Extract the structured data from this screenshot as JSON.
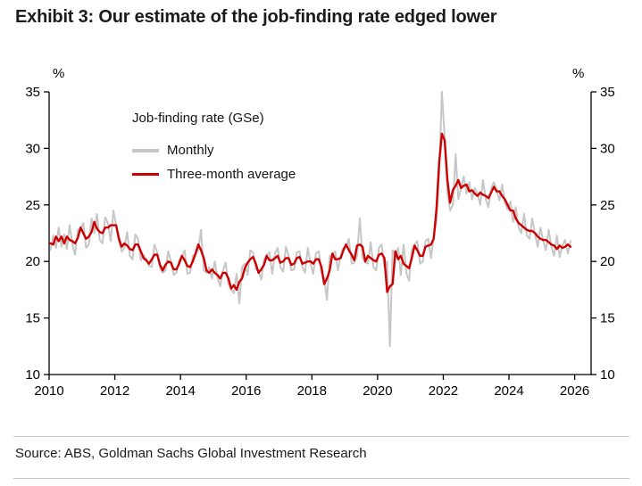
{
  "footer": {
    "source": "Source: ABS, Goldman Sachs Global Investment Research"
  },
  "chart_data": {
    "type": "line",
    "title": "Exhibit 3: Our estimate of the job-finding rate edged lower",
    "unit": "%",
    "x_start_year": 2010,
    "x_frequency": "monthly",
    "xlim": [
      2010,
      2026.5
    ],
    "ylim": [
      10,
      35
    ],
    "xticks": [
      2010,
      2012,
      2014,
      2016,
      2018,
      2020,
      2022,
      2024,
      2026
    ],
    "yticks": [
      10,
      15,
      20,
      25,
      30,
      35
    ],
    "legend": {
      "heading": "Job-finding rate (GSe)",
      "entries": [
        {
          "name": "Monthly",
          "color": "#c6c6c6"
        },
        {
          "name": "Three-month average",
          "color": "#cc0000"
        }
      ]
    },
    "series": [
      {
        "name": "Monthly",
        "color": "#c6c6c6",
        "width": 2,
        "values": [
          21.0,
          22.3,
          21.2,
          23.0,
          21.3,
          22.4,
          21.1,
          23.2,
          21.5,
          20.6,
          22.8,
          22.9,
          23.4,
          21.2,
          21.5,
          23.8,
          22.5,
          24.2,
          21.9,
          21.6,
          23.9,
          23.4,
          21.8,
          24.5,
          23.2,
          21.8,
          20.9,
          21.2,
          22.6,
          20.5,
          20.2,
          22.4,
          22.0,
          20.1,
          20.6,
          20.2,
          19.6,
          19.5,
          21.5,
          20.8,
          19.4,
          19.0,
          19.2,
          20.9,
          20.0,
          18.8,
          19.0,
          20.1,
          20.4,
          21.0,
          18.9,
          19.0,
          20.5,
          20.6,
          21.0,
          22.8,
          19.2,
          19.0,
          19.5,
          18.5,
          20.0,
          18.6,
          17.8,
          19.2,
          19.9,
          18.0,
          17.5,
          17.2,
          18.9,
          16.3,
          19.5,
          19.8,
          18.8,
          21.0,
          20.8,
          19.3,
          19.2,
          18.4,
          20.2,
          20.6,
          20.8,
          18.9,
          20.7,
          21.2,
          19.5,
          19.1,
          21.3,
          20.5,
          19.2,
          19.3,
          20.8,
          20.9,
          19.5,
          19.0,
          21.2,
          19.8,
          18.9,
          20.7,
          20.9,
          19.0,
          18.5,
          16.6,
          20.5,
          20.6,
          20.9,
          19.2,
          20.5,
          21.2,
          21.3,
          22.0,
          19.8,
          19.9,
          20.5,
          23.8,
          20.3,
          19.9,
          19.8,
          21.7,
          19.5,
          19.2,
          21.2,
          21.5,
          19.5,
          20.0,
          12.5,
          21.0,
          20.5,
          21.2,
          18.8,
          21.5,
          19.0,
          18.3,
          21.0,
          21.5,
          21.8,
          19.8,
          20.0,
          21.8,
          22.0,
          20.3,
          22.2,
          23.5,
          28.0,
          35.0,
          31.0,
          26.0,
          24.5,
          25.0,
          29.5,
          25.5,
          26.5,
          27.5,
          26.0,
          27.0,
          25.5,
          26.5,
          26.0,
          25.0,
          27.2,
          25.5,
          24.8,
          26.5,
          27.0,
          26.3,
          25.4,
          26.8,
          25.2,
          24.6,
          25.3,
          23.5,
          24.8,
          23.0,
          22.5,
          24.2,
          22.3,
          22.0,
          23.8,
          22.4,
          21.3,
          23.0,
          21.8,
          21.0,
          22.8,
          21.3,
          20.5,
          22.3,
          20.4,
          21.4,
          21.9,
          20.7,
          21.8
        ]
      },
      {
        "name": "Three-month average",
        "color": "#cc0000",
        "width": 2.4,
        "values": [
          21.6,
          21.5,
          22.2,
          21.8,
          22.2,
          21.6,
          22.2,
          21.9,
          21.8,
          21.6,
          22.1,
          23.0,
          22.5,
          22.0,
          22.2,
          22.6,
          23.5,
          22.9,
          22.6,
          22.5,
          23.0,
          23.0,
          23.2,
          23.2,
          23.2,
          22.0,
          21.3,
          21.6,
          21.4,
          21.1,
          21.0,
          21.5,
          21.5,
          20.9,
          20.3,
          20.1,
          19.8,
          20.2,
          20.6,
          20.6,
          19.7,
          19.2,
          19.7,
          20.0,
          19.9,
          19.3,
          19.3,
          19.8,
          20.5,
          20.1,
          19.6,
          19.5,
          20.0,
          20.7,
          21.5,
          21.0,
          20.3,
          19.2,
          19.0,
          19.3,
          19.0,
          18.8,
          18.5,
          19.0,
          19.0,
          18.5,
          17.6,
          17.9,
          17.5,
          18.2,
          18.5,
          19.4,
          19.9,
          20.2,
          20.4,
          19.8,
          19.0,
          19.3,
          19.7,
          20.5,
          20.1,
          20.1,
          20.3,
          20.5,
          19.9,
          20.0,
          20.3,
          20.3,
          19.7,
          19.8,
          20.3,
          20.4,
          19.8,
          19.9,
          20.0,
          20.0,
          19.8,
          20.2,
          20.2,
          19.5,
          18.0,
          18.5,
          19.2,
          20.7,
          20.2,
          20.2,
          20.3,
          21.0,
          21.5,
          21.0,
          20.6,
          20.1,
          21.4,
          21.5,
          21.3,
          20.0,
          20.5,
          20.3,
          20.1,
          20.0,
          20.6,
          20.7,
          20.3,
          17.3,
          17.8,
          18.0,
          20.9,
          20.2,
          20.5,
          19.8,
          19.6,
          19.4,
          20.3,
          21.4,
          21.0,
          20.5,
          20.5,
          21.3,
          21.4,
          21.5,
          22.0,
          24.6,
          28.8,
          31.3,
          30.7,
          27.2,
          25.2,
          26.3,
          26.7,
          27.2,
          26.5,
          26.7,
          26.8,
          26.2,
          26.3,
          26.0,
          25.8,
          26.1,
          25.9,
          25.8,
          25.6,
          26.1,
          26.6,
          26.2,
          26.2,
          25.8,
          25.5,
          25.0,
          24.5,
          24.5,
          23.8,
          23.4,
          23.2,
          23.0,
          22.8,
          22.7,
          22.7,
          22.5,
          22.2,
          22.0,
          21.9,
          21.9,
          21.7,
          21.5,
          21.4,
          21.1,
          21.4,
          21.2,
          21.3,
          21.5,
          21.3
        ]
      }
    ]
  }
}
